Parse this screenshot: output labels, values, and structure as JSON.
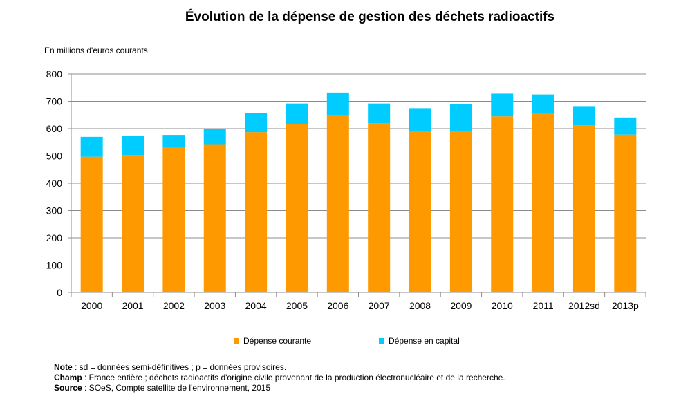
{
  "chart_data": {
    "type": "bar",
    "stacked": true,
    "title": "Évolution de la dépense de gestion des déchets radioactifs",
    "unit_label": "En millions d'euros courants",
    "categories": [
      "2000",
      "2001",
      "2002",
      "2003",
      "2004",
      "2005",
      "2006",
      "2007",
      "2008",
      "2009",
      "2010",
      "2011",
      "2012sd",
      "2013p"
    ],
    "series": [
      {
        "name": "Dépense courante",
        "color": "#FF9900",
        "values": [
          497,
          503,
          530,
          543,
          587,
          617,
          650,
          620,
          590,
          592,
          645,
          658,
          612,
          578
        ]
      },
      {
        "name": "Dépense en capital",
        "color": "#00CCFF",
        "values": [
          73,
          70,
          47,
          57,
          70,
          75,
          82,
          72,
          85,
          98,
          83,
          67,
          68,
          63
        ]
      }
    ],
    "ylim": [
      0,
      800
    ],
    "yticks": [
      0,
      100,
      200,
      300,
      400,
      500,
      600,
      700,
      800
    ],
    "grid": true,
    "legend_position": "bottom"
  },
  "notes": {
    "note_label": "Note",
    "note_text": " : sd = données semi-définitives ; p = données provisoires.",
    "champ_label": "Champ",
    "champ_text": " : France entière ; déchets radioactifs d'origine civile provenant de la production électronucléaire et de la recherche.",
    "source_label": "Source",
    "source_text": " : SOeS, Compte satellite de l'environnement, 2015"
  }
}
